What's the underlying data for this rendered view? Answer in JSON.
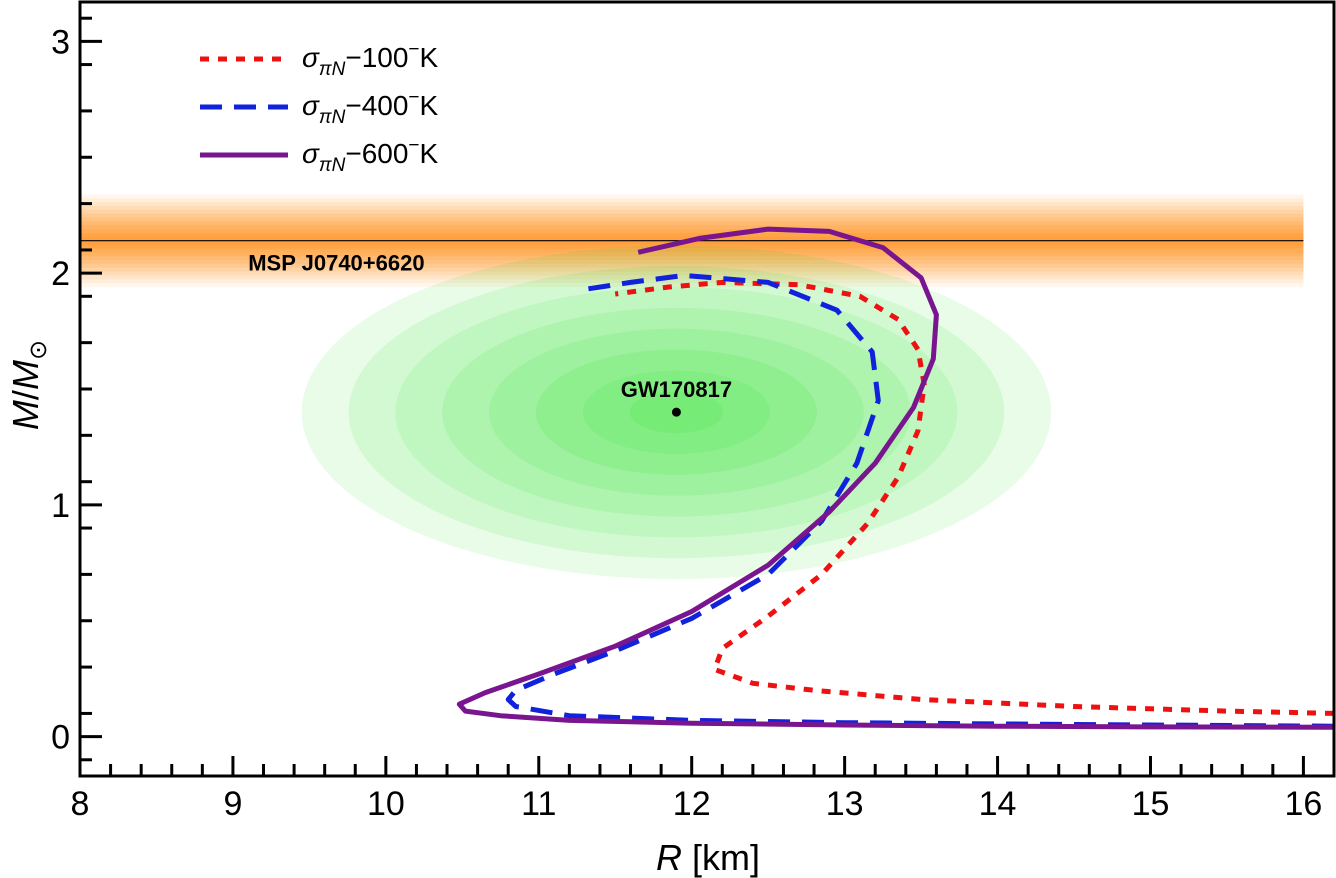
{
  "chart_data": {
    "type": "line",
    "title": "",
    "xlabel": {
      "var": "R",
      "unit": " [km]"
    },
    "ylabel": {
      "num": "M",
      "slash": "/",
      "den": "M",
      "sub": "⊙"
    },
    "xlim": [
      8,
      16.2
    ],
    "ylim": [
      -0.17,
      3.17
    ],
    "xticks": [
      8,
      9,
      10,
      11,
      12,
      13,
      14,
      15,
      16
    ],
    "xtick_labels": [
      "8",
      "9",
      "10",
      "11",
      "12",
      "13",
      "14",
      "15",
      "16"
    ],
    "yticks": [
      0,
      1,
      2,
      3
    ],
    "ytick_labels": [
      "0",
      "1",
      "2",
      "3"
    ],
    "legend_position": "top-left",
    "series": [
      {
        "name": "σπN−100−K",
        "label": {
          "sigma": "σ",
          "sub": "πN",
          "mid": "−100",
          "sup": "−",
          "end": "K"
        },
        "color": "#ee1111",
        "style": "dotted",
        "points": [
          [
            16.2,
            0.1
          ],
          [
            15.5,
            0.11
          ],
          [
            14.5,
            0.13
          ],
          [
            13.5,
            0.16
          ],
          [
            12.8,
            0.2
          ],
          [
            12.4,
            0.23
          ],
          [
            12.15,
            0.29
          ],
          [
            12.2,
            0.38
          ],
          [
            12.5,
            0.52
          ],
          [
            12.85,
            0.7
          ],
          [
            13.15,
            0.92
          ],
          [
            13.35,
            1.12
          ],
          [
            13.48,
            1.32
          ],
          [
            13.52,
            1.52
          ],
          [
            13.48,
            1.67
          ],
          [
            13.35,
            1.8
          ],
          [
            13.1,
            1.9
          ],
          [
            12.7,
            1.95
          ],
          [
            12.2,
            1.96
          ],
          [
            11.85,
            1.94
          ],
          [
            11.5,
            1.91
          ]
        ]
      },
      {
        "name": "σπN−400−K",
        "label": {
          "sigma": "σ",
          "sub": "πN",
          "mid": "−400",
          "sup": "−",
          "end": "K"
        },
        "color": "#1122dd",
        "style": "dashed",
        "points": [
          [
            16.2,
            0.045
          ],
          [
            15.0,
            0.05
          ],
          [
            14.0,
            0.055
          ],
          [
            13.0,
            0.06
          ],
          [
            12.0,
            0.07
          ],
          [
            11.2,
            0.09
          ],
          [
            10.85,
            0.13
          ],
          [
            10.8,
            0.16
          ],
          [
            10.85,
            0.2
          ],
          [
            11.1,
            0.27
          ],
          [
            11.5,
            0.37
          ],
          [
            12.0,
            0.51
          ],
          [
            12.5,
            0.7
          ],
          [
            12.85,
            0.93
          ],
          [
            13.08,
            1.18
          ],
          [
            13.22,
            1.45
          ],
          [
            13.18,
            1.66
          ],
          [
            12.95,
            1.84
          ],
          [
            12.5,
            1.96
          ],
          [
            11.95,
            1.99
          ],
          [
            11.6,
            1.96
          ],
          [
            11.3,
            1.93
          ]
        ]
      },
      {
        "name": "σπN−600−K",
        "label": {
          "sigma": "σ",
          "sub": "πN",
          "mid": "−600",
          "sup": "−",
          "end": "K"
        },
        "color": "#7a1590",
        "style": "solid",
        "points": [
          [
            16.2,
            0.04
          ],
          [
            15.0,
            0.042
          ],
          [
            14.0,
            0.045
          ],
          [
            13.0,
            0.05
          ],
          [
            12.0,
            0.058
          ],
          [
            11.2,
            0.07
          ],
          [
            10.75,
            0.09
          ],
          [
            10.52,
            0.11
          ],
          [
            10.48,
            0.14
          ],
          [
            10.65,
            0.19
          ],
          [
            11.0,
            0.27
          ],
          [
            11.5,
            0.39
          ],
          [
            12.0,
            0.54
          ],
          [
            12.5,
            0.74
          ],
          [
            12.9,
            0.97
          ],
          [
            13.2,
            1.18
          ],
          [
            13.45,
            1.42
          ],
          [
            13.58,
            1.63
          ],
          [
            13.6,
            1.82
          ],
          [
            13.5,
            1.98
          ],
          [
            13.25,
            2.11
          ],
          [
            12.9,
            2.18
          ],
          [
            12.5,
            2.19
          ],
          [
            12.05,
            2.15
          ],
          [
            11.65,
            2.09
          ]
        ]
      }
    ],
    "constraints": [
      {
        "name": "MSP J0740+6620",
        "type": "band",
        "center": 2.14,
        "sigma": 0.1,
        "xrange": [
          8,
          16
        ],
        "color": "#ff8000"
      },
      {
        "name": "GW170817",
        "type": "ellipse",
        "center": [
          11.9,
          1.4
        ],
        "half_widths": [
          2.45,
          0.72
        ],
        "color": "#00dd00"
      }
    ]
  }
}
